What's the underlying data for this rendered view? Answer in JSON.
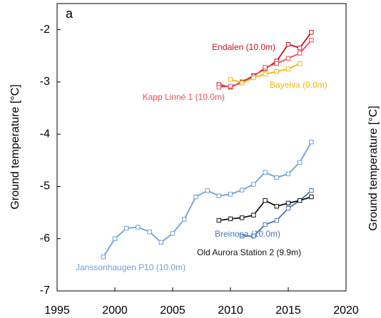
{
  "chart_data": {
    "type": "line",
    "panel_label": "a",
    "ylabel": "Ground temperature [°C]",
    "ylabel2": "Ground temperature [°C]",
    "xlim": [
      1995,
      2020
    ],
    "xticks": [
      1995,
      2000,
      2005,
      2010,
      2015,
      2020
    ],
    "ylim": [
      -7,
      -1.5
    ],
    "yticks": [
      -7,
      -6,
      -5,
      -4,
      -3,
      -2
    ],
    "grid": false,
    "series": [
      {
        "name": "Janssonhaugen P10 (10.0m)",
        "color": "#6d9fd6",
        "x": [
          1999,
          2000,
          2001,
          2002,
          2003,
          2004,
          2005,
          2006,
          2007,
          2008,
          2009,
          2010,
          2011,
          2012,
          2013,
          2014,
          2015,
          2016,
          2017
        ],
        "values": [
          -6.35,
          -6.0,
          -5.8,
          -5.78,
          -5.87,
          -6.07,
          -5.9,
          -5.63,
          -5.2,
          -5.08,
          -5.18,
          -5.15,
          -5.07,
          -4.96,
          -4.73,
          -4.83,
          -4.76,
          -4.54,
          -4.15
        ]
      },
      {
        "name": "Breinosa (10.0m)",
        "color": "#4877b3",
        "x": [
          2011,
          2012,
          2013,
          2014,
          2015,
          2016,
          2017
        ],
        "values": [
          -5.95,
          -5.95,
          -5.73,
          -5.65,
          -5.42,
          -5.27,
          -5.08
        ]
      },
      {
        "name": "Old Aurora Station 2 (9.9m)",
        "color": "#111111",
        "x": [
          2009,
          2010,
          2011,
          2012,
          2013,
          2014,
          2015,
          2016,
          2017
        ],
        "values": [
          -5.65,
          -5.62,
          -5.6,
          -5.55,
          -5.27,
          -5.38,
          -5.32,
          -5.27,
          -5.2
        ]
      },
      {
        "name": "Endalen (10.0m)",
        "color": "#c8101c",
        "x": [
          2009,
          2010,
          2011,
          2012,
          2013,
          2014,
          2015,
          2016,
          2017
        ],
        "values": [
          -3.05,
          -3.1,
          -3.0,
          -2.88,
          -2.75,
          -2.6,
          -2.28,
          -2.35,
          -2.05
        ]
      },
      {
        "name": "Kapp Linné 1 (10.0m)",
        "color": "#ea4f5a",
        "x": [
          2009,
          2010,
          2011,
          2012,
          2013,
          2014,
          2015,
          2016,
          2017
        ],
        "values": [
          -3.1,
          -3.08,
          -3.02,
          -2.9,
          -2.72,
          -2.65,
          -2.55,
          -2.45,
          -2.2
        ]
      },
      {
        "name": "Bayelva (9.0m)",
        "color": "#f2b705",
        "x": [
          2010,
          2011,
          2012,
          2013,
          2014,
          2015,
          2016
        ],
        "values": [
          -2.95,
          -3.02,
          -2.92,
          -2.85,
          -2.8,
          -2.75,
          -2.65
        ]
      }
    ]
  }
}
